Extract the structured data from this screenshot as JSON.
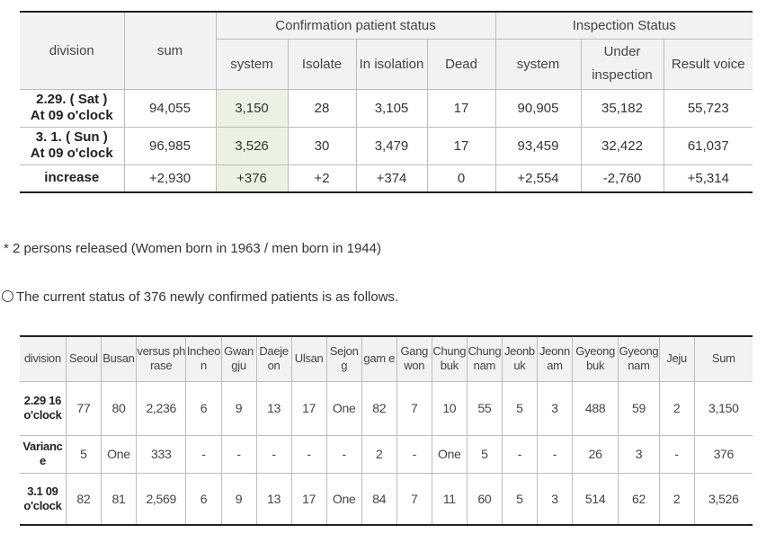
{
  "table1": {
    "headers": {
      "division": "division",
      "sum": "sum",
      "confirmation_group": "Confirmation patient status",
      "inspection_group": "Inspection Status",
      "system": "system",
      "isolate": "Isolate",
      "in_isolation": "In isolation",
      "dead": "Dead",
      "insp_system": "system",
      "under_inspection_1": "Under",
      "under_inspection_2": "inspection",
      "result_voice": "Result voice"
    },
    "rows": [
      {
        "label1": "2.29. ( Sat )",
        "label2": "At 09 o'clock",
        "values": [
          "94,055",
          "3,150",
          "28",
          "3,105",
          "17",
          "90,905",
          "35,182",
          "55,723"
        ]
      },
      {
        "label1": "3. 1. ( Sun )",
        "label2": "At 09 o'clock",
        "values": [
          "96,985",
          "3,526",
          "30",
          "3,479",
          "17",
          "93,459",
          "32,422",
          "61,037"
        ]
      },
      {
        "label1": "increase",
        "label2": "",
        "values": [
          "+2,930",
          "+376",
          "+2",
          "+374",
          "0",
          "+2,554",
          "-2,760",
          "+5,314"
        ]
      }
    ]
  },
  "notes": {
    "released": "* 2 persons released (Women born in 1963 / men born in 1944)",
    "current_status": "The current status of 376 newly confirmed patients is as follows."
  },
  "table2": {
    "headers": [
      "division",
      "Seoul",
      "Busan",
      "versus phrase",
      "Incheon",
      "Gwangju",
      "Daejeon",
      "Ulsan",
      "Sejong",
      "gam e",
      "Gangwon",
      "Chungbuk",
      "Chungnam",
      "Jeonbuk",
      "Jeonnam",
      "Gyeongbuk",
      "Gyeongnam",
      "Jeju",
      "Sum"
    ],
    "rows": [
      {
        "label": "2.29 16 o'clock",
        "values": [
          "77",
          "80",
          "2,236",
          "6",
          "9",
          "13",
          "17",
          "One",
          "82",
          "7",
          "10",
          "55",
          "5",
          "3",
          "488",
          "59",
          "2",
          "3,150"
        ]
      },
      {
        "label": "Variance",
        "values": [
          "5",
          "One",
          "333",
          "-",
          "-",
          "-",
          "-",
          "-",
          "2",
          "-",
          "One",
          "5",
          "-",
          "-",
          "26",
          "3",
          "-",
          "376"
        ]
      },
      {
        "label": "3.1 09 o'clock",
        "values": [
          "82",
          "81",
          "2,569",
          "6",
          "9",
          "13",
          "17",
          "One",
          "84",
          "7",
          "11",
          "60",
          "5",
          "3",
          "514",
          "62",
          "2",
          "3,526"
        ]
      }
    ]
  }
}
